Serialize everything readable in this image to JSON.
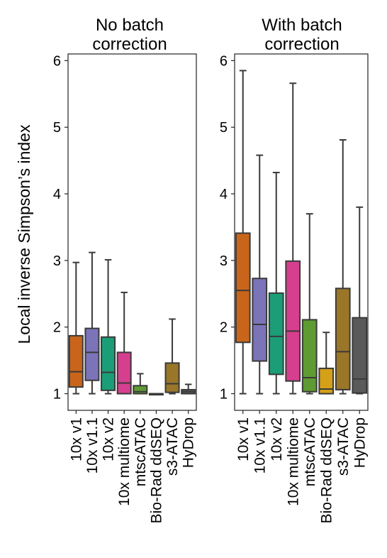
{
  "ylabel": "Local inverse Simpson’s index",
  "chart_data": [
    {
      "type": "box",
      "title_lines": [
        "No batch",
        "correction"
      ],
      "ylim": [
        0.75,
        6.1
      ],
      "yticks": [
        "1",
        "2",
        "3",
        "4",
        "5",
        "6"
      ],
      "categories": [
        "10x v1",
        "10x v1.1",
        "10x v2",
        "10x multiome",
        "mtscATAC",
        "Bio-Rad ddSEQ",
        "s3-ATAC",
        "HyDrop"
      ],
      "colors": [
        "#C8651B",
        "#7B74B8",
        "#1B9E77",
        "#D63F8E",
        "#5E9B32",
        "#D4A017",
        "#9A7628",
        "#5A5A5A"
      ],
      "boxes": [
        {
          "whisker_low": 1.0,
          "q1": 1.1,
          "median": 1.33,
          "q3": 1.87,
          "whisker_high": 2.97
        },
        {
          "whisker_low": 1.0,
          "q1": 1.2,
          "median": 1.62,
          "q3": 1.98,
          "whisker_high": 3.12
        },
        {
          "whisker_low": 1.0,
          "q1": 1.05,
          "median": 1.32,
          "q3": 1.85,
          "whisker_high": 3.01
        },
        {
          "whisker_low": 1.0,
          "q1": 1.0,
          "median": 1.16,
          "q3": 1.62,
          "whisker_high": 2.52
        },
        {
          "whisker_low": 1.0,
          "q1": 1.0,
          "median": 1.03,
          "q3": 1.12,
          "whisker_high": 1.3
        },
        {
          "whisker_low": 1.0,
          "q1": 1.0,
          "median": 1.0,
          "q3": 1.0,
          "whisker_high": 1.0
        },
        {
          "whisker_low": 1.0,
          "q1": 1.02,
          "median": 1.15,
          "q3": 1.46,
          "whisker_high": 2.12
        },
        {
          "whisker_low": 1.0,
          "q1": 1.0,
          "median": 1.03,
          "q3": 1.06,
          "whisker_high": 1.14
        }
      ]
    },
    {
      "type": "box",
      "title_lines": [
        "With batch",
        "correction"
      ],
      "ylim": [
        0.75,
        6.1
      ],
      "yticks": [
        "1",
        "2",
        "3",
        "4",
        "5",
        "6"
      ],
      "categories": [
        "10x v1",
        "10x v1.1",
        "10x v2",
        "10x multiome",
        "mtscATAC",
        "Bio-Rad ddSEQ",
        "s3-ATAC",
        "HyDrop"
      ],
      "colors": [
        "#C8651B",
        "#7B74B8",
        "#1B9E77",
        "#D63F8E",
        "#5E9B32",
        "#D4A017",
        "#9A7628",
        "#5A5A5A"
      ],
      "boxes": [
        {
          "whisker_low": 1.0,
          "q1": 1.77,
          "median": 2.55,
          "q3": 3.41,
          "whisker_high": 5.85
        },
        {
          "whisker_low": 1.0,
          "q1": 1.49,
          "median": 2.04,
          "q3": 2.73,
          "whisker_high": 4.58
        },
        {
          "whisker_low": 1.0,
          "q1": 1.29,
          "median": 1.86,
          "q3": 2.51,
          "whisker_high": 4.32
        },
        {
          "whisker_low": 1.0,
          "q1": 1.19,
          "median": 1.94,
          "q3": 2.99,
          "whisker_high": 5.66
        },
        {
          "whisker_low": 1.0,
          "q1": 1.03,
          "median": 1.24,
          "q3": 2.11,
          "whisker_high": 3.7
        },
        {
          "whisker_low": 1.0,
          "q1": 1.0,
          "median": 1.07,
          "q3": 1.38,
          "whisker_high": 1.92
        },
        {
          "whisker_low": 1.0,
          "q1": 1.06,
          "median": 1.63,
          "q3": 2.58,
          "whisker_high": 4.81
        },
        {
          "whisker_low": 1.0,
          "q1": 1.01,
          "median": 1.22,
          "q3": 2.14,
          "whisker_high": 3.8
        }
      ]
    }
  ]
}
